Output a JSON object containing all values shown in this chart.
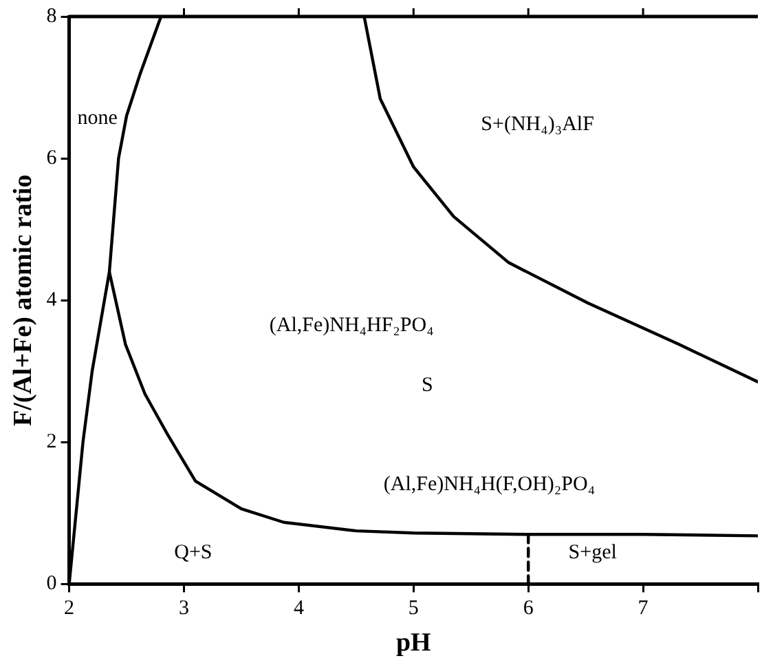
{
  "chart_data": {
    "type": "line",
    "xlabel": "pH",
    "ylabel": "F/(Al+Fe) atomic ratio",
    "xlim": [
      2,
      8
    ],
    "xticks": [
      2,
      3,
      4,
      5,
      6,
      7,
      {
        "value": 8,
        "label": null
      }
    ],
    "ylim": [
      0,
      8
    ],
    "yticks": [
      0,
      2,
      4,
      6,
      8
    ],
    "grid": false,
    "legend": false,
    "marker": "none",
    "series": [
      {
        "color": "#000000",
        "line_style": "solid",
        "x": [
          2,
          2.06,
          2.12,
          2.2,
          2.35,
          2.43,
          2.5,
          2.62,
          2.8
        ],
        "values": [
          0,
          1,
          2,
          3,
          4.4,
          6,
          6.6,
          7.2,
          8
        ]
      },
      {
        "color": "#000000",
        "line_style": "solid",
        "x": [
          2.35,
          2.49,
          2.66,
          2.86,
          3.1,
          3.5,
          3.87,
          4.5,
          5,
          6,
          7,
          8
        ],
        "values": [
          4.4,
          3.38,
          2.68,
          2.1,
          1.45,
          1.06,
          0.87,
          0.75,
          0.72,
          0.7,
          0.7,
          0.68
        ]
      },
      {
        "color": "#000000",
        "line_style": "solid",
        "x": [
          4.57,
          4.71,
          5.0,
          5.35,
          5.83,
          6.52,
          7.31,
          8
        ],
        "values": [
          8,
          6.84,
          5.88,
          5.18,
          4.53,
          3.96,
          3.38,
          2.85
        ]
      },
      {
        "color": "#000000",
        "line_style": "dashed",
        "x": [
          6,
          6
        ],
        "values": [
          0,
          0.7
        ]
      }
    ],
    "annotations": [
      "none",
      "S+(NH₄)₃AlF",
      "(Al,Fe)NH₄HF₂PO₄",
      "S",
      "(Al,Fe)NH₄H(F,OH)₂PO₄",
      "Q+S",
      "S+gel"
    ]
  }
}
